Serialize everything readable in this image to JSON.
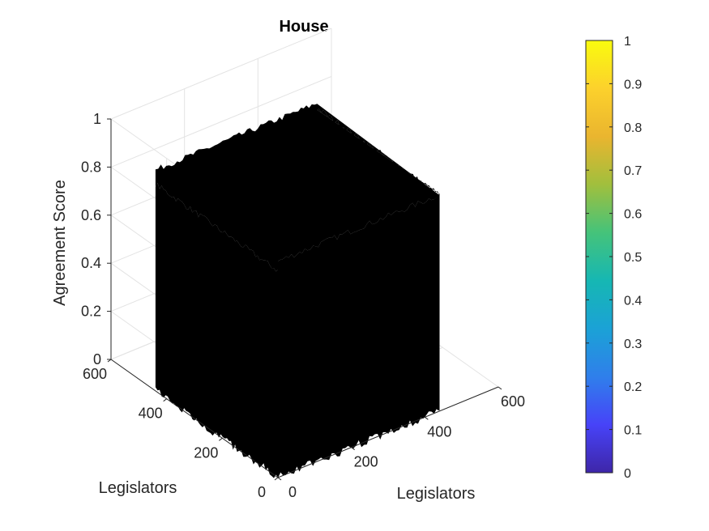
{
  "chart_data": {
    "type": "surface",
    "title": "House",
    "xlabel": "Legislators",
    "ylabel": "Legislators",
    "zlabel": "Agreement Score",
    "xlim": [
      0,
      600
    ],
    "ylim": [
      0,
      600
    ],
    "zlim": [
      0,
      1
    ],
    "x_ticks": [
      "0",
      "200",
      "400",
      "600"
    ],
    "y_ticks": [
      "0",
      "200",
      "400",
      "600"
    ],
    "z_ticks": [
      "0",
      "0.2",
      "0.4",
      "0.6",
      "0.8",
      "1"
    ],
    "grid": true,
    "surface_extent": {
      "x": [
        0,
        440
      ],
      "y": [
        0,
        440
      ],
      "z_min": 0.0,
      "z_max": 1.0
    },
    "surface_color": "#000000",
    "colorbar": {
      "min": 0,
      "max": 1,
      "ticks": [
        "0",
        "0.1",
        "0.2",
        "0.3",
        "0.4",
        "0.5",
        "0.6",
        "0.7",
        "0.8",
        "0.9",
        "1"
      ],
      "colormap": [
        "#3e26a8",
        "#4743f8",
        "#2f7feb",
        "#1ba2d6",
        "#16b7b3",
        "#45c37a",
        "#a1bf3d",
        "#eab52f",
        "#fcd12c",
        "#f9fb0e"
      ]
    }
  }
}
